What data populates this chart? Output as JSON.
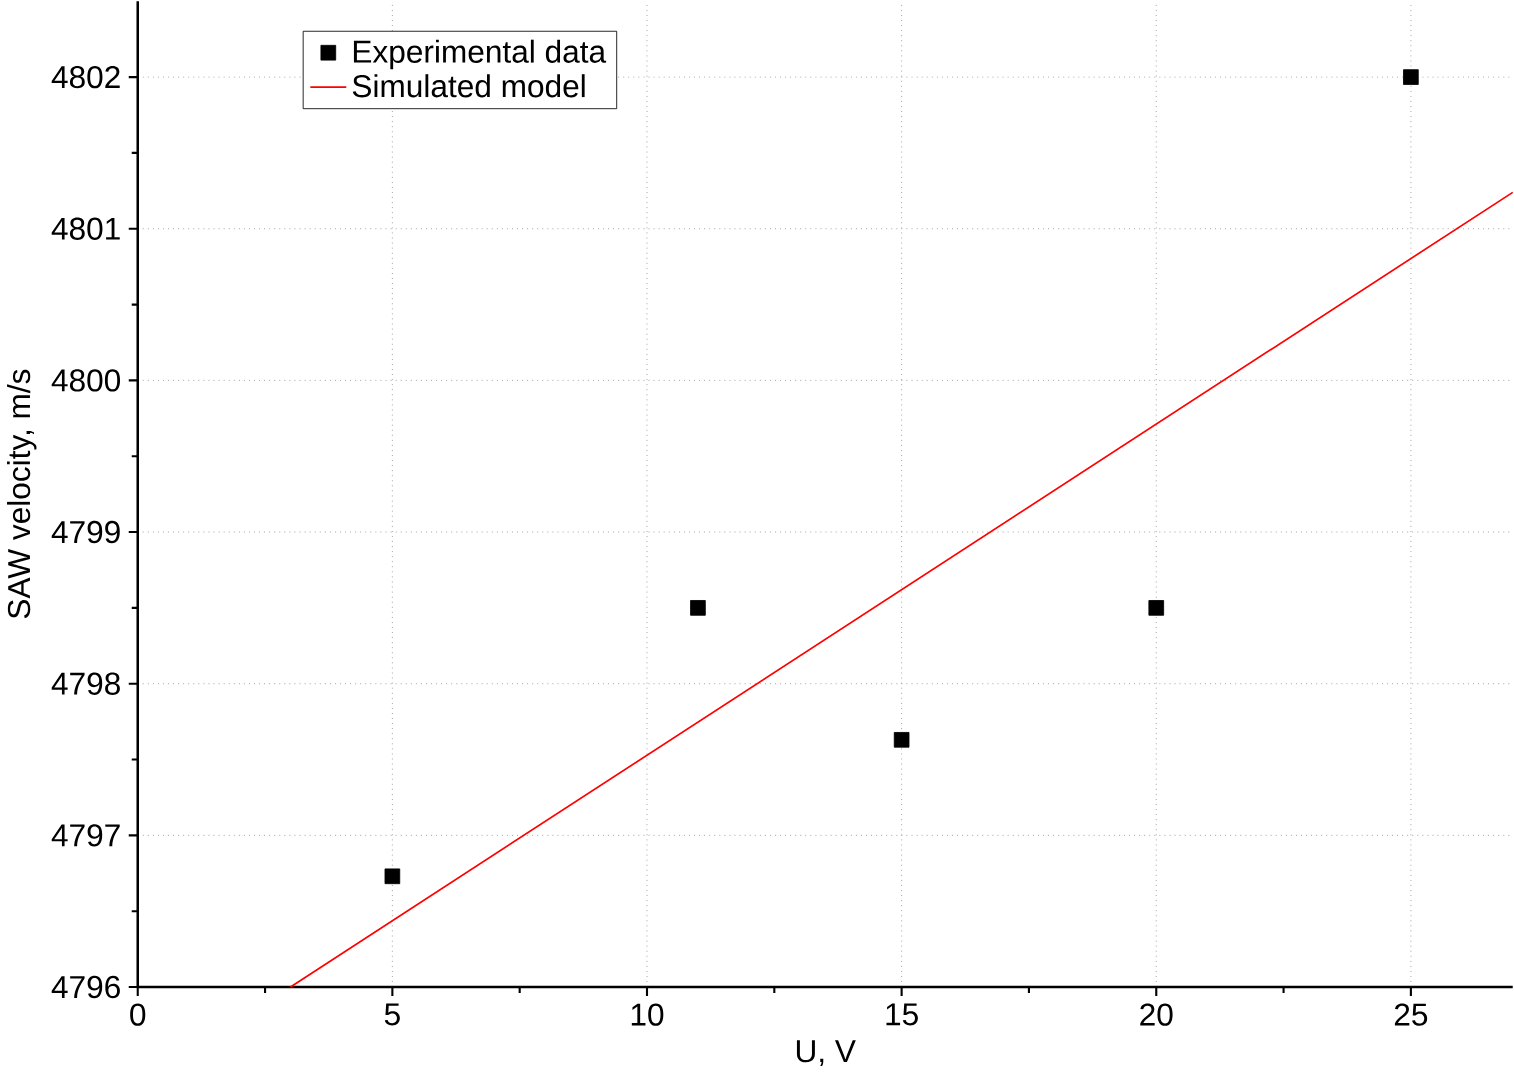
{
  "chart_data": {
    "type": "scatter",
    "xlabel": "U, V",
    "ylabel": "SAW velocity, m/s",
    "xlim": [
      0,
      27
    ],
    "ylim": [
      4796,
      4802.5
    ],
    "xticks": [
      0,
      5,
      10,
      15,
      20,
      25
    ],
    "yticks": [
      4796,
      4797,
      4798,
      4799,
      4800,
      4801,
      4802
    ],
    "grid": true,
    "legend": "top left",
    "marker": "square",
    "series": [
      {
        "name": "Experimental data",
        "color": "#000000",
        "x": [
          5,
          11,
          15,
          20,
          25
        ],
        "values": [
          4796.73,
          4798.5,
          4797.63,
          4798.5,
          4802.0
        ]
      },
      {
        "name": "Simulated model",
        "type": "line",
        "color": "#ff0000",
        "x": [
          3,
          27
        ],
        "values": [
          4796,
          4801.24
        ],
        "line_style": "solid",
        "marker": "none"
      }
    ]
  }
}
